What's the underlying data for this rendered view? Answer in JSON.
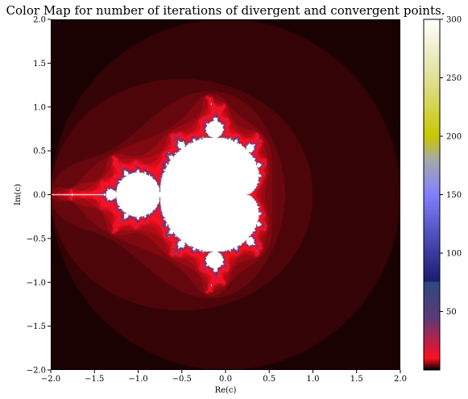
{
  "chart_data": {
    "type": "heatmap",
    "title": "Color Map for number of iterations of divergent and convergent points.",
    "xlabel": "Re(c)",
    "ylabel": "Im(c)",
    "xlim": [
      -2.0,
      2.0
    ],
    "ylim": [
      -2.0,
      2.0
    ],
    "x_ticks": [
      "−2.0",
      "−1.5",
      "−1.0",
      "−0.5",
      "0.0",
      "0.5",
      "1.0",
      "1.5",
      "2.0"
    ],
    "y_ticks": [
      "2.0",
      "1.5",
      "1.0",
      "0.5",
      "0.0",
      "−0.5",
      "−1.0",
      "−1.5",
      "−2.0"
    ],
    "grid": false,
    "max_iterations": 300,
    "colorbar": {
      "range": [
        0,
        300
      ],
      "ticks": [
        "50",
        "100",
        "150",
        "200",
        "250",
        "300"
      ],
      "colormap": "gist_stern-like",
      "stops": [
        {
          "value": 0,
          "color": "#000000"
        },
        {
          "value": 10,
          "color": "#ff1020"
        },
        {
          "value": 18,
          "color": "#d81838"
        },
        {
          "value": 45,
          "color": "#5a3a78"
        },
        {
          "value": 75,
          "color": "#2c4a80"
        },
        {
          "value": 76,
          "color": "#1a1c70"
        },
        {
          "value": 100,
          "color": "#3a3a9c"
        },
        {
          "value": 150,
          "color": "#8080ff"
        },
        {
          "value": 180,
          "color": "#a8a8a8"
        },
        {
          "value": 200,
          "color": "#c8c800"
        },
        {
          "value": 250,
          "color": "#e0e09a"
        },
        {
          "value": 300,
          "color": "#ffffff"
        }
      ]
    }
  }
}
